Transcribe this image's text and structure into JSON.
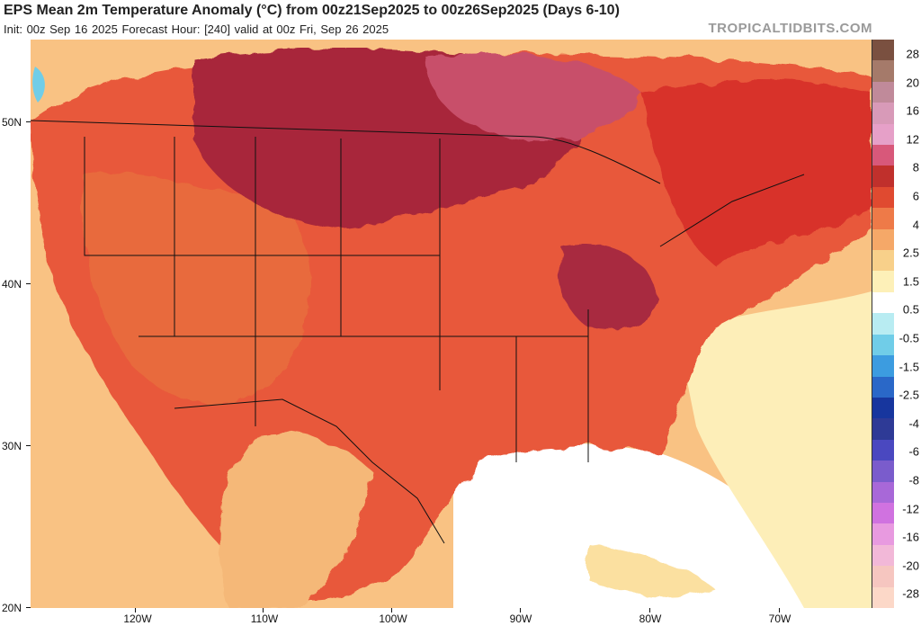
{
  "header": {
    "title": "EPS Mean 2m Temperature Anomaly (°C) from 00z21Sep2025 to 00z26Sep2025 (Days 6-10)",
    "subtitle": "Init: 00z Sep 16 2025   Forecast Hour: [240]   valid at 00z Fri, Sep 26 2025",
    "brand": "TROPICALTIDBITS.COM"
  },
  "axes": {
    "lat_labels": [
      "50N",
      "40N",
      "30N",
      "20N"
    ],
    "lon_labels": [
      "120W",
      "110W",
      "100W",
      "90W",
      "80W",
      "70W"
    ]
  },
  "colorbar": {
    "labels": [
      "28",
      "20",
      "16",
      "12",
      "8",
      "6",
      "4",
      "2.5",
      "1.5",
      "0.5",
      "-0.5",
      "-1.5",
      "-2.5",
      "-4",
      "-6",
      "-8",
      "-12",
      "-16",
      "-20",
      "-28"
    ],
    "colors": [
      "#7a5040",
      "#a57a6a",
      "#c08a9a",
      "#d89ab8",
      "#e6a0c8",
      "#d8587a",
      "#c0302c",
      "#e04a30",
      "#ee7a48",
      "#f5a868",
      "#f8d08a",
      "#fdf0b8",
      "#ffffff",
      "#b8ecf2",
      "#70cde8",
      "#3c9ce0",
      "#2a68c8",
      "#17369e",
      "#2e3a96",
      "#4a48c0",
      "#7a5ccc",
      "#a868d8",
      "#d072e0",
      "#e89ae0",
      "#f2b8d8",
      "#f6c6c0",
      "#fcd8c8"
    ]
  },
  "map": {
    "regions": [
      "north-pink-anomaly",
      "northern-rockies-anomaly",
      "ohio-valley-anomaly",
      "central-us-anomaly",
      "southwest-us-anomaly",
      "northeast-us-anomaly",
      "gulf-coast-anomaly",
      "atlantic-ocean-anomaly",
      "pacific-ocean-anomaly",
      "mexico-anomaly",
      "caribbean-anomaly"
    ]
  }
}
